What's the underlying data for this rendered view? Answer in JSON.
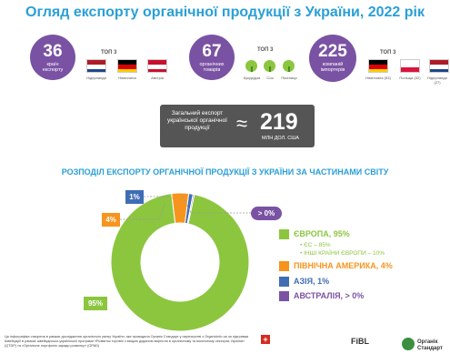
{
  "title": "Огляд експорту органічної продукції з України, 2022 рік",
  "stats": {
    "countries": {
      "value": "36",
      "label": "країн експорту"
    },
    "goods": {
      "value": "67",
      "label": "органічних товарів"
    },
    "importers": {
      "value": "225",
      "label": "компаній імпортерів"
    }
  },
  "top3_label": "ТОП 3",
  "top_countries": [
    "Нідерланди",
    "Німеччина",
    "Австрія"
  ],
  "top_goods": [
    "Кукурудза",
    "Соя",
    "Пшениця"
  ],
  "top_importers": [
    "Німеччина (53)",
    "Польща (32)",
    "Нідерланди (27)"
  ],
  "total": {
    "label": "Загальний експорт української органічної продукції",
    "approx": "≈",
    "value": "219",
    "unit": "МЛН ДОЛ. США"
  },
  "subtitle": "РОЗПОДІЛ ЕКСПОРТУ ОРГАНІЧНОЇ ПРОДУКЦІЇ З УКРАЇНИ ЗА ЧАСТИНАМИ СВІТУ",
  "colors": {
    "europe": "#8cc63f",
    "north_america": "#f7941d",
    "asia": "#3f6db5",
    "australia": "#7a52a3",
    "title": "#2a9fd6"
  },
  "chart_data": {
    "type": "pie",
    "donut": true,
    "title": "РОЗПОДІЛ ЕКСПОРТУ ОРГАНІЧНОЇ ПРОДУКЦІЇ З УКРАЇНИ ЗА ЧАСТИНАМИ СВІТУ",
    "slices": [
      {
        "name": "ЄВРОПА",
        "value": 95,
        "label": "95%",
        "color": "#8cc63f"
      },
      {
        "name": "ПІВНІЧНА АМЕРИКА",
        "value": 4,
        "label": "4%",
        "color": "#f7941d"
      },
      {
        "name": "АЗІЯ",
        "value": 1,
        "label": "1%",
        "color": "#3f6db5"
      },
      {
        "name": "АВСТРАЛІЯ",
        "value": 0.3,
        "label": "> 0%",
        "color": "#7a52a3"
      }
    ],
    "legend": [
      {
        "text": "ЄВРОПА, 95%",
        "color": "#8cc63f"
      },
      {
        "text": "ПІВНІЧНА АМЕРИКА, 4%",
        "color": "#f7941d"
      },
      {
        "text": "АЗІЯ, 1%",
        "color": "#3f6db5"
      },
      {
        "text": "АВСТРАЛІЯ, > 0%",
        "color": "#7a52a3"
      }
    ],
    "sub_legend": [
      "ЄС – 85%",
      "ІНШІ КРАЇНИ ЄВРОПИ – 10%"
    ],
    "legend_position": "right"
  },
  "footer": "Ця інфографіка створена в рамках дослідження органічного ринку України, яке проводила Органік Стандарт у партнерстві з Organicinfo.ua за підтримки Швейцарії в рамках швейцарсько-української програми «Розвиток торгівлі з вищою доданою вартістю в органічному та молочному секторах України» (QTDP) та «Органічне портфоліо заради розвитку» (OPAD)",
  "logos": [
    "FiBL",
    "Органік Стандарт"
  ]
}
